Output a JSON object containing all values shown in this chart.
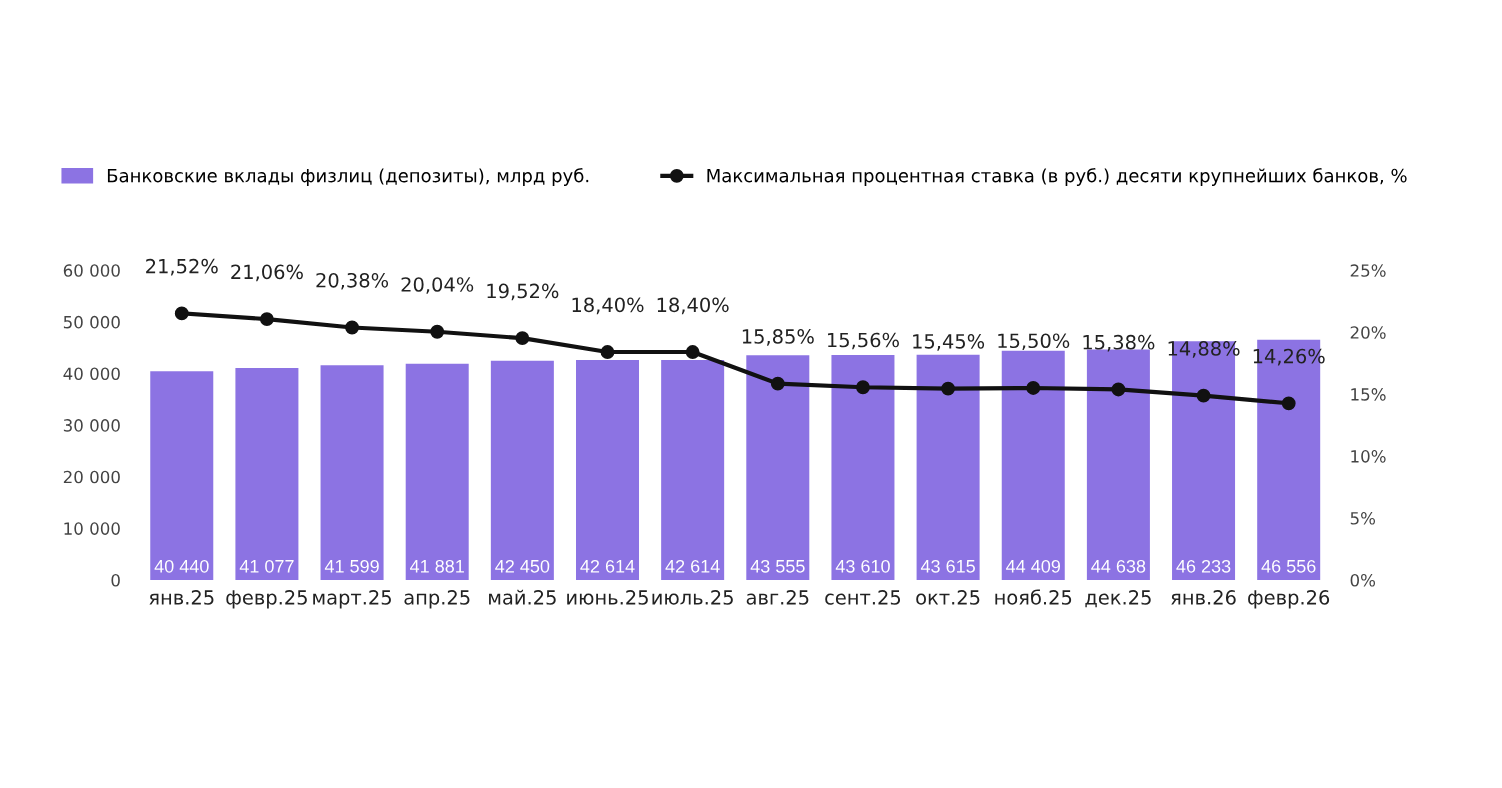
{
  "chart_data": {
    "type": "bar",
    "categories": [
      "янв.25",
      "февр.25",
      "март.25",
      "апр.25",
      "май.25",
      "июнь.25",
      "июль.25",
      "авг.25",
      "сент.25",
      "окт.25",
      "нояб.25",
      "дек.25",
      "янв.26",
      "февр.26"
    ],
    "series": [
      {
        "name": "Банковские вклады физлиц (депозиты), млрд руб.",
        "color": "#8c73e3",
        "values": [
          40440,
          41077,
          41599,
          41881,
          42450,
          42614,
          42614,
          43555,
          43610,
          43615,
          44409,
          44638,
          46233,
          46556
        ],
        "value_labels": [
          "40 440",
          "41 077",
          "41 599",
          "41 881",
          "42 450",
          "42 614",
          "42 614",
          "43 555",
          "43 610",
          "43 615",
          "44 409",
          "44 638",
          "46 233",
          "46 556"
        ]
      },
      {
        "name": "Максимальная процентная ставка (в руб.) десяти крупнейших банков, %",
        "type": "line",
        "axis": "y2",
        "color": "#111111",
        "marker": "circle",
        "values": [
          21.52,
          21.06,
          20.38,
          20.04,
          19.52,
          18.4,
          18.4,
          15.85,
          15.56,
          15.45,
          15.5,
          15.38,
          14.88,
          14.26
        ],
        "value_labels": [
          "21,52%",
          "21,06%",
          "20,38%",
          "20,04%",
          "19,52%",
          "18,40%",
          "18,40%",
          "15,85%",
          "15,56%",
          "15,45%",
          "15,50%",
          "15,38%",
          "14,88%",
          "14,26%"
        ]
      }
    ],
    "ylim": [
      0,
      60000
    ],
    "yticks": [
      {
        "value": 0,
        "label": "0"
      },
      {
        "value": 10000,
        "label": "10 000"
      },
      {
        "value": 20000,
        "label": "20 000"
      },
      {
        "value": 30000,
        "label": "30 000"
      },
      {
        "value": 40000,
        "label": "40 000"
      },
      {
        "value": 50000,
        "label": "50 000"
      },
      {
        "value": 60000,
        "label": "60 000"
      }
    ],
    "y2lim": [
      0,
      25
    ],
    "y2ticks": [
      {
        "value": 0,
        "label": "0%"
      },
      {
        "value": 5,
        "label": "5%"
      },
      {
        "value": 10,
        "label": "10%"
      },
      {
        "value": 15,
        "label": "15%"
      },
      {
        "value": 20,
        "label": "20%"
      },
      {
        "value": 25,
        "label": "25%"
      }
    ],
    "legend": "top",
    "grid": false
  }
}
